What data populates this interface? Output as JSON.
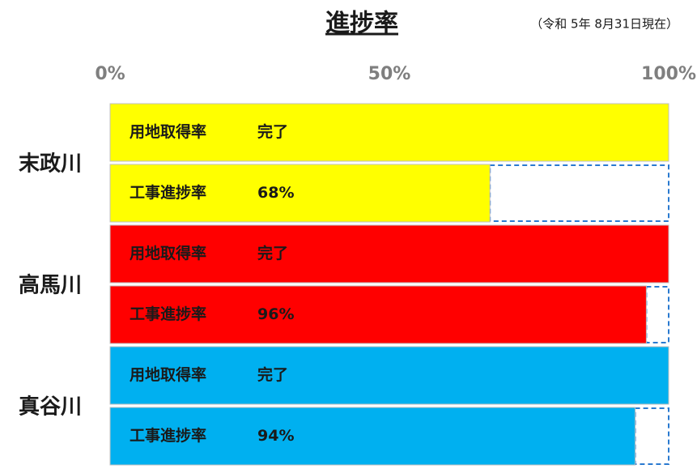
{
  "chart_data": {
    "type": "bar",
    "orientation": "horizontal",
    "title": "進捗率",
    "subtitle": "（令和 5年 8月31日現在）",
    "xlim": [
      0,
      100
    ],
    "xticks": [
      {
        "value": 0,
        "label": "0%"
      },
      {
        "value": 50,
        "label": "50%"
      },
      {
        "value": 100,
        "label": "100%"
      }
    ],
    "groups": [
      {
        "name": "末政川",
        "color": "#ffff00",
        "bars": [
          {
            "label": "用地取得率",
            "value": 100,
            "value_label": "完了"
          },
          {
            "label": "工事進捗率",
            "value": 68,
            "value_label": "68%"
          }
        ]
      },
      {
        "name": "高馬川",
        "color": "#ff0000",
        "bars": [
          {
            "label": "用地取得率",
            "value": 100,
            "value_label": "完了"
          },
          {
            "label": "工事進捗率",
            "value": 96,
            "value_label": "96%"
          }
        ]
      },
      {
        "name": "真谷川",
        "color": "#00b0f0",
        "bars": [
          {
            "label": "用地取得率",
            "value": 100,
            "value_label": "完了"
          },
          {
            "label": "工事進捗率",
            "value": 94,
            "value_label": "94%"
          }
        ]
      }
    ]
  }
}
